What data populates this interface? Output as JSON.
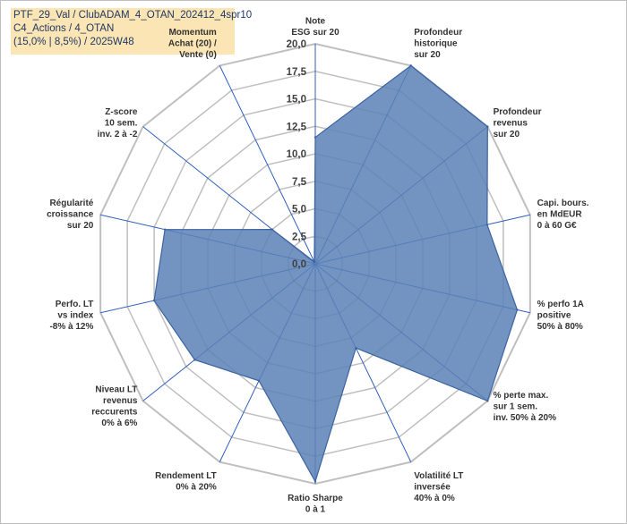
{
  "header": {
    "line1": "PTF_29_Val / ClubADAM_4_OTAN_202412_4spr10",
    "line2": "C4_Actions / 4_OTAN",
    "line3": "(15,0% | 8,5%) / 2025W48"
  },
  "colors": {
    "fill": "#5b81b6",
    "stroke": "#3b63a2",
    "grid": "#bfbfbf",
    "spoke": "#2f5fbf",
    "title_bg": "#fbe5b4"
  },
  "chart_data": {
    "type": "radar",
    "rmax": 20,
    "ticks": [
      "0,0",
      "2,5",
      "5,0",
      "7,5",
      "10,0",
      "12,5",
      "15,0",
      "17,5",
      "20,0"
    ],
    "axes": [
      {
        "label": [
          "Note",
          "ESG sur 20"
        ],
        "value": 11.5
      },
      {
        "label": [
          "Profondeur",
          "historique",
          "sur 20"
        ],
        "value": 20
      },
      {
        "label": [
          "Profondeur",
          "revenus",
          "sur 20"
        ],
        "value": 20
      },
      {
        "label": [
          "Capi. bours.",
          "en MdEUR",
          "0 à 60 G€"
        ],
        "value": 16
      },
      {
        "label": [
          "% perfo 1A",
          "positive",
          "50% à 80%"
        ],
        "value": 18.8
      },
      {
        "label": [
          "% perte max.",
          "sur 1 sem.",
          "inv. 50% à 20%"
        ],
        "value": 20
      },
      {
        "label": [
          "Volatilité LT",
          "inversée",
          "40% à 0%"
        ],
        "value": 8.5
      },
      {
        "label": [
          "Ratio Sharpe",
          "0 à 1"
        ],
        "value": 19.8
      },
      {
        "label": [
          "Rendement LT",
          "0% à 20%"
        ],
        "value": 11.8
      },
      {
        "label": [
          "Niveau LT",
          "revenus",
          "reccurents",
          "0% à 6%"
        ],
        "value": 14
      },
      {
        "label": [
          "Perfo. LT",
          "vs index",
          "-8% à 12%"
        ],
        "value": 15
      },
      {
        "label": [
          "Régularité",
          "croissance",
          "sur 20"
        ],
        "value": 14
      },
      {
        "label": [
          "Z-score",
          "10 sem.",
          "inv. 2 à -2"
        ],
        "value": 5
      },
      {
        "label": [
          "Momentum",
          "Achat (20) /",
          "Vente (0)"
        ],
        "value": 0.2
      }
    ]
  }
}
